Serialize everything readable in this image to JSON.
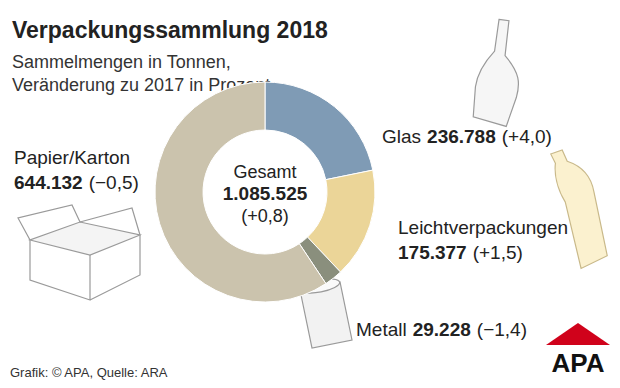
{
  "chart_data": {
    "type": "donut",
    "title": "Verpackungssammlung 2018",
    "subtitle": [
      "Sammelmengen in Tonnen,",
      "Veränderung zu 2017 in Prozent"
    ],
    "categories": [
      "Glas",
      "Leichtverpackungen",
      "Metall",
      "Papier/Karton"
    ],
    "values": [
      236788,
      175377,
      29228,
      644132
    ],
    "value_labels": [
      "236.788",
      "175.377",
      "29.228",
      "644.132"
    ],
    "changes": [
      4.0,
      1.5,
      -1.4,
      -0.5
    ],
    "change_labels": [
      "(+4,0)",
      "(+1,5)",
      "(−1,4)",
      "(−0,5)"
    ],
    "colors": [
      "#7f9bb5",
      "#ebd598",
      "#8a8f7d",
      "#cbc3ad"
    ],
    "total_name": "Gesamt",
    "total": 1085525,
    "total_label": "1.085.525",
    "total_change": 0.8,
    "total_change_label": "(+0,8)",
    "data_labels": true,
    "source": "Grafik: © APA, Quelle: ARA",
    "logo": "APA"
  }
}
